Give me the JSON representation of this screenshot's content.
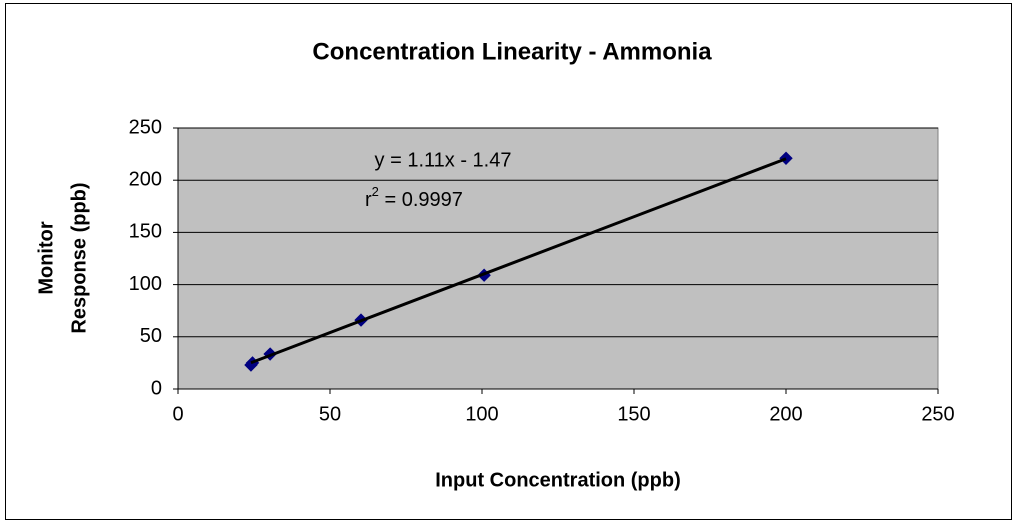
{
  "chart_data": {
    "type": "scatter",
    "title": "Concentration Linearity - Ammonia",
    "xlabel": "Input Concentration (ppb)",
    "ylabel": [
      "Monitor",
      "Response (ppb)"
    ],
    "series": [
      {
        "name": "Ammonia",
        "color": "#000080",
        "x": [
          24,
          24.5,
          30.3,
          60.2,
          100.7,
          200
        ],
        "values": [
          23,
          25,
          33.5,
          66,
          109,
          221
        ]
      }
    ],
    "trendline": {
      "equation": "y = 1.11x - 1.47",
      "slope": 1.11,
      "intercept": -1.47,
      "r_squared_label": [
        "r",
        "2",
        " = 0.9997"
      ],
      "r_squared": 0.9997,
      "color": "#000000"
    },
    "xlim": [
      0,
      250
    ],
    "xticks": [
      0,
      50,
      100,
      150,
      200,
      250
    ],
    "ylim": [
      0,
      250
    ],
    "yticks": [
      0,
      50,
      100,
      150,
      200,
      250
    ],
    "grid": true,
    "plot_background": "#c0c0c0"
  }
}
